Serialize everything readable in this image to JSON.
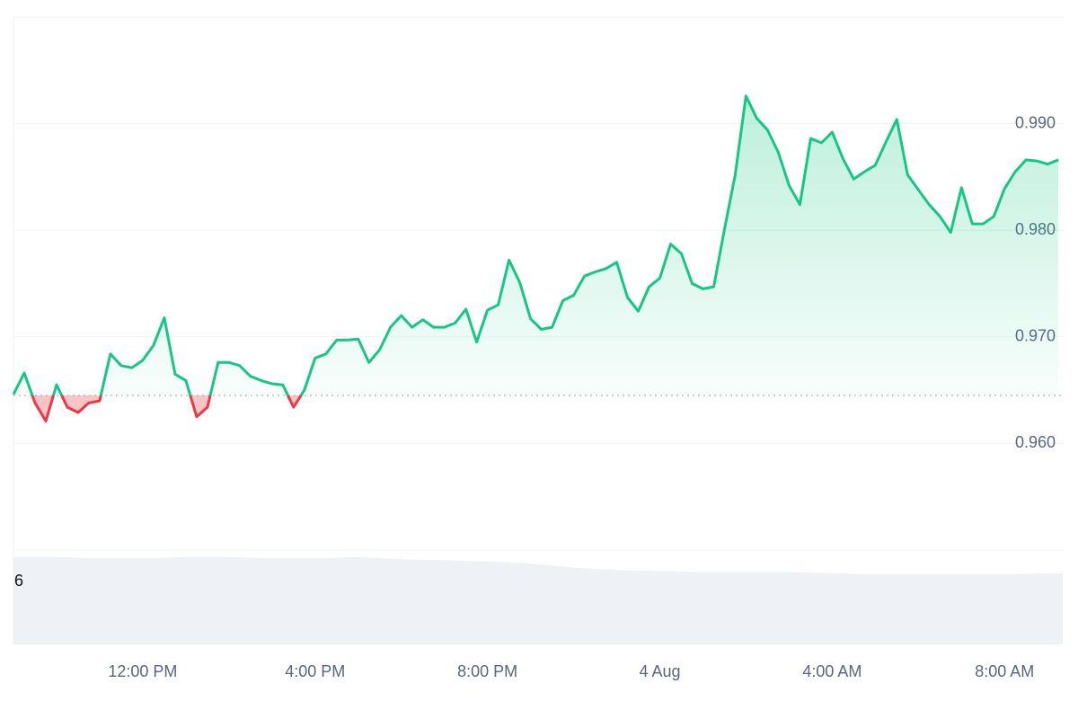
{
  "chart_data": [
    {
      "type": "line",
      "x": [
        9,
        9.25,
        9.5,
        9.75,
        10,
        10.25,
        10.5,
        10.75,
        11,
        11.25,
        11.5,
        11.75,
        12,
        12.25,
        12.5,
        12.75,
        13,
        13.25,
        13.5,
        13.75,
        14,
        14.25,
        14.5,
        14.75,
        15,
        15.25,
        15.5,
        15.75,
        16,
        16.25,
        16.5,
        16.75,
        17,
        17.25,
        17.5,
        17.75,
        18,
        18.25,
        18.5,
        18.75,
        19,
        19.25,
        19.5,
        19.75,
        20,
        20.25,
        20.5,
        20.75,
        21,
        21.25,
        21.5,
        21.75,
        22,
        22.25,
        22.5,
        22.75,
        23,
        23.25,
        23.5,
        23.75,
        24,
        24.25,
        24.5,
        24.75,
        25,
        25.25,
        25.5,
        25.75,
        26,
        26.25,
        26.5,
        26.75,
        27,
        27.25,
        27.5,
        27.75,
        28,
        28.25,
        28.5,
        28.75,
        29,
        29.25,
        29.5,
        29.75,
        30,
        30.25,
        30.5,
        30.75,
        31,
        31.25,
        31.5,
        31.75,
        32,
        32.25,
        32.5,
        32.75,
        33,
        33.25
      ],
      "values": [
        0.9646,
        0.9666,
        0.9638,
        0.9621,
        0.9655,
        0.9634,
        0.9629,
        0.9638,
        0.964,
        0.9684,
        0.9673,
        0.9671,
        0.9678,
        0.9692,
        0.9718,
        0.9665,
        0.9659,
        0.9625,
        0.9634,
        0.9676,
        0.9676,
        0.9673,
        0.9663,
        0.9659,
        0.9656,
        0.9655,
        0.9634,
        0.965,
        0.968,
        0.9684,
        0.9697,
        0.9697,
        0.9698,
        0.9676,
        0.9688,
        0.9709,
        0.972,
        0.9709,
        0.9716,
        0.9709,
        0.9709,
        0.9713,
        0.9726,
        0.9695,
        0.9725,
        0.973,
        0.9772,
        0.9751,
        0.9717,
        0.9707,
        0.9709,
        0.9734,
        0.9739,
        0.9757,
        0.9761,
        0.9764,
        0.977,
        0.9737,
        0.9724,
        0.9747,
        0.9755,
        0.9787,
        0.9778,
        0.975,
        0.9745,
        0.9747,
        0.9801,
        0.9852,
        0.9926,
        0.9905,
        0.9894,
        0.9873,
        0.9842,
        0.9824,
        0.9886,
        0.9882,
        0.9892,
        0.9867,
        0.9848,
        0.9855,
        0.9861,
        0.9883,
        0.9904,
        0.9852,
        0.9838,
        0.9824,
        0.9813,
        0.9798,
        0.984,
        0.9806,
        0.9806,
        0.9813,
        0.9839,
        0.9855,
        0.9866,
        0.9865,
        0.9862,
        0.9866
      ],
      "baseline": 0.9645,
      "up_color": "#16c784",
      "down_color": "#ea3943",
      "xlim": [
        9,
        33.35
      ],
      "xticks": [
        {
          "value": 12,
          "label": "12:00 PM"
        },
        {
          "value": 16,
          "label": "4:00 PM"
        },
        {
          "value": 20,
          "label": "8:00 PM"
        },
        {
          "value": 24,
          "label": "4 Aug"
        },
        {
          "value": 28,
          "label": "4:00 AM"
        },
        {
          "value": 32,
          "label": "8:00 AM"
        }
      ],
      "ylim": [
        0.95,
        1.0
      ],
      "yticks": [
        {
          "value": 0.96,
          "label": "0.960"
        },
        {
          "value": 0.97,
          "label": "0.970"
        },
        {
          "value": 0.98,
          "label": "0.980"
        },
        {
          "value": 0.99,
          "label": "0.990"
        }
      ],
      "grid": true
    },
    {
      "type": "area",
      "x": [
        9,
        10,
        11,
        12,
        13,
        14,
        15,
        16,
        17,
        18,
        19,
        20,
        21,
        22,
        23,
        24,
        25,
        26,
        27,
        28,
        29,
        30,
        31,
        32,
        33
      ],
      "values": [
        8.1,
        8.1,
        8.0,
        8.0,
        8.1,
        8.1,
        8.0,
        8.0,
        8.1,
        7.9,
        7.8,
        7.7,
        7.5,
        7.1,
        6.9,
        6.8,
        6.7,
        6.7,
        6.7,
        6.6,
        6.5,
        6.5,
        6.5,
        6.5,
        6.6
      ],
      "color": "#eef1f5",
      "ylim": [
        0,
        8.75
      ],
      "yticks": [
        6
      ]
    }
  ]
}
